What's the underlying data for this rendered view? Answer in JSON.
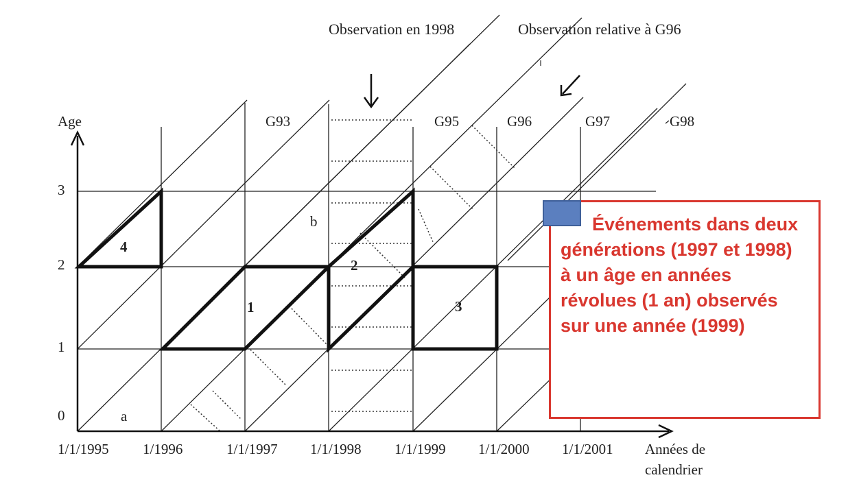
{
  "header": {
    "observation_1998": "Observation en 1998",
    "observation_g96": "Observation relative à G96"
  },
  "axes": {
    "y_label": "Age",
    "y_ticks": [
      "0",
      "1",
      "2",
      "3"
    ],
    "x_ticks": [
      "1/1/1995",
      "1/1996",
      "1/1/1997",
      "1/1/1998",
      "1/1/1999",
      "1/1/2000",
      "1/1/2001"
    ],
    "x_label_line1": "Années de",
    "x_label_line2": "calendrier"
  },
  "generations": [
    "G93",
    "G95",
    "G96",
    "G97",
    "G98"
  ],
  "regions": {
    "r1": "1",
    "r2": "2",
    "r3": "3",
    "r4": "4",
    "a": "a",
    "b": "b"
  },
  "legend": {
    "text": "Événements dans deux générations (1997 et 1998) à un âge en années révolues (1 an) observés sur une année (1999)",
    "swatch_color": "#5b7fbf",
    "text_color": "#d9372f"
  }
}
